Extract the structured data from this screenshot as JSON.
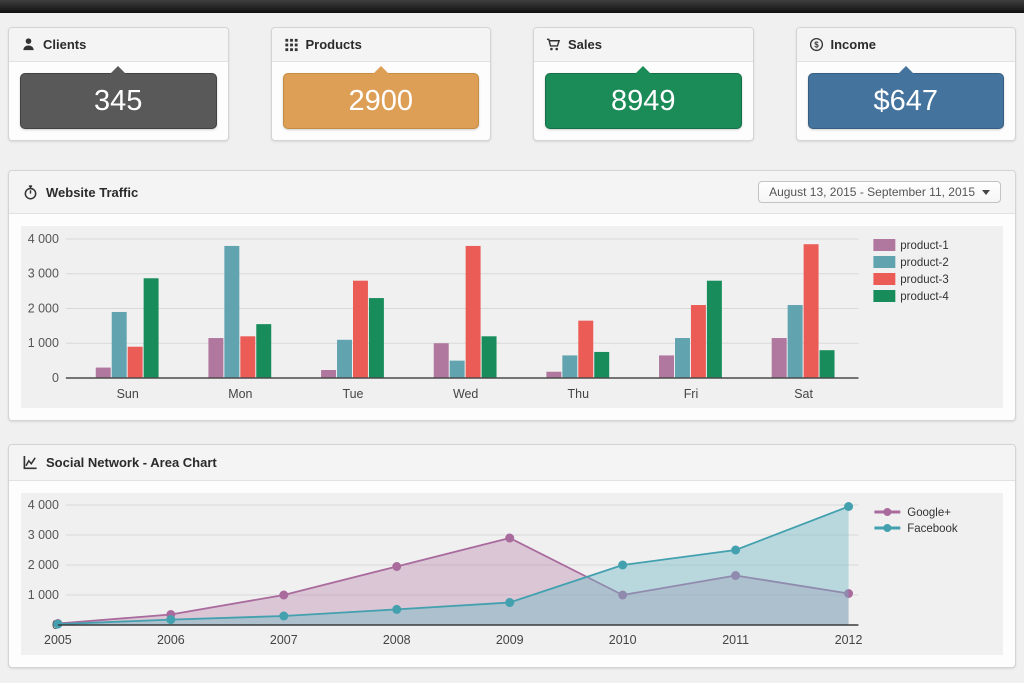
{
  "stats": {
    "cards": [
      {
        "label": "Clients",
        "value": "345",
        "icon": "user-icon",
        "bg": "#595959",
        "border": "#424242"
      },
      {
        "label": "Products",
        "value": "2900",
        "icon": "grid-icon",
        "bg": "#dd9e56",
        "border": "#c68c41"
      },
      {
        "label": "Sales",
        "value": "8949",
        "icon": "cart-icon",
        "bg": "#1b8c58",
        "border": "#136f45"
      },
      {
        "label": "Income",
        "value": "$647",
        "icon": "dollar-icon",
        "bg": "#44749d",
        "border": "#385f83"
      }
    ]
  },
  "panels": {
    "traffic": {
      "title": "Website Traffic",
      "icon": "stopwatch-icon",
      "date_range": "August 13, 2015 - September 11, 2015"
    },
    "social": {
      "title": "Social Network - Area Chart",
      "icon": "line-chart-icon"
    }
  },
  "chart_data": [
    {
      "type": "bar",
      "title": "Website Traffic",
      "categories": [
        "Sun",
        "Mon",
        "Tue",
        "Wed",
        "Thu",
        "Fri",
        "Sat"
      ],
      "series": [
        {
          "name": "product-1",
          "color": "#b0779f",
          "values": [
            300,
            1150,
            230,
            1000,
            180,
            650,
            1150
          ]
        },
        {
          "name": "product-2",
          "color": "#61a4b0",
          "values": [
            1900,
            3800,
            1100,
            500,
            650,
            1150,
            2100
          ]
        },
        {
          "name": "product-3",
          "color": "#ec5c57",
          "values": [
            900,
            1200,
            2800,
            3800,
            1650,
            2100,
            3850
          ]
        },
        {
          "name": "product-4",
          "color": "#188d5b",
          "values": [
            2870,
            1550,
            2300,
            1200,
            750,
            2800,
            800
          ]
        }
      ],
      "xlabel": "",
      "ylabel": "",
      "ylim": [
        0,
        4000
      ],
      "yticks": [
        0,
        1000,
        2000,
        3000,
        4000
      ],
      "grid": true,
      "legend_position": "right"
    },
    {
      "type": "area",
      "title": "Social Network - Area Chart",
      "x": [
        2005,
        2006,
        2007,
        2008,
        2009,
        2010,
        2011,
        2012
      ],
      "series": [
        {
          "name": "Google+",
          "color": "#a96b9d",
          "fill": "rgba(178,119,160,0.35)",
          "values": [
            50,
            350,
            1000,
            1950,
            2900,
            1000,
            1650,
            1050
          ]
        },
        {
          "name": "Facebook",
          "color": "#43a0af",
          "fill": "rgba(109,183,197,0.42)",
          "values": [
            30,
            180,
            300,
            520,
            750,
            2000,
            2500,
            3950
          ]
        }
      ],
      "xlabel": "",
      "ylabel": "",
      "ylim": [
        0,
        4000
      ],
      "yticks": [
        0,
        1000,
        2000,
        3000,
        4000
      ],
      "grid": true,
      "legend_position": "top-right"
    }
  ]
}
